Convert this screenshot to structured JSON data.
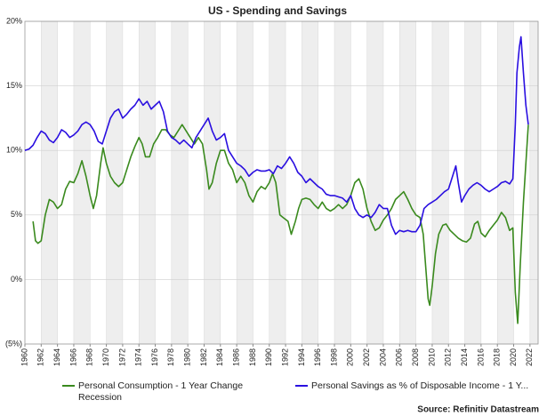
{
  "chart_data": {
    "type": "line",
    "title": "US - Spending and Savings",
    "xlim": [
      1960,
      2023
    ],
    "ylim": [
      -5,
      20
    ],
    "xticks": [
      1960,
      1962,
      1964,
      1966,
      1968,
      1970,
      1972,
      1974,
      1976,
      1978,
      1980,
      1982,
      1984,
      1986,
      1988,
      1990,
      1992,
      1994,
      1996,
      1998,
      2000,
      2002,
      2004,
      2006,
      2008,
      2010,
      2012,
      2014,
      2016,
      2018,
      2020,
      2022
    ],
    "yticks": [
      {
        "value": -5,
        "label": "(5%)"
      },
      {
        "value": 0,
        "label": "0%"
      },
      {
        "value": 5,
        "label": "5%"
      },
      {
        "value": 10,
        "label": "10%"
      },
      {
        "value": 15,
        "label": "15%"
      },
      {
        "value": 20,
        "label": "20%"
      }
    ],
    "grid": true,
    "recession_label": "Recession",
    "source": "Source: Refinitiv Datastream",
    "series": [
      {
        "name": "Personal Consumption - 1 Year Change",
        "color": "#3a8a1e",
        "x": [
          1961.0,
          1961.3,
          1961.6,
          1962.0,
          1962.5,
          1963.0,
          1963.5,
          1964.0,
          1964.5,
          1965.0,
          1965.5,
          1966.0,
          1966.5,
          1967.0,
          1967.5,
          1968.0,
          1968.4,
          1968.8,
          1969.3,
          1969.6,
          1970.0,
          1970.5,
          1971.0,
          1971.5,
          1972.0,
          1972.5,
          1973.0,
          1973.5,
          1974.0,
          1974.4,
          1974.8,
          1975.3,
          1975.8,
          1976.3,
          1976.8,
          1977.3,
          1977.8,
          1978.3,
          1978.8,
          1979.3,
          1979.8,
          1980.3,
          1980.8,
          1981.3,
          1981.8,
          1982.3,
          1982.6,
          1983.0,
          1983.5,
          1984.0,
          1984.5,
          1985.0,
          1985.5,
          1986.0,
          1986.5,
          1987.0,
          1987.5,
          1988.0,
          1988.5,
          1989.0,
          1989.5,
          1990.0,
          1990.4,
          1990.8,
          1991.3,
          1991.7,
          1992.3,
          1992.7,
          1993.2,
          1993.6,
          1994.0,
          1994.5,
          1995.0,
          1995.5,
          1996.0,
          1996.5,
          1997.0,
          1997.5,
          1998.0,
          1998.5,
          1999.0,
          1999.5,
          2000.0,
          2000.5,
          2001.0,
          2001.5,
          2002.0,
          2002.5,
          2003.0,
          2003.5,
          2004.0,
          2004.5,
          2005.0,
          2005.5,
          2006.0,
          2006.5,
          2007.0,
          2007.5,
          2008.0,
          2008.5,
          2008.9,
          2009.2,
          2009.5,
          2009.7,
          2010.0,
          2010.4,
          2010.8,
          2011.3,
          2011.7,
          2012.2,
          2012.7,
          2013.2,
          2013.7,
          2014.2,
          2014.7,
          2015.2,
          2015.6,
          2016.0,
          2016.5,
          2017.0,
          2017.5,
          2018.0,
          2018.5,
          2019.0,
          2019.5,
          2019.9,
          2020.2,
          2020.5,
          2020.8,
          2021.2,
          2021.5,
          2021.8
        ],
        "values": [
          4.5,
          3.0,
          2.8,
          3.0,
          5.0,
          6.2,
          6.0,
          5.5,
          5.8,
          7.0,
          7.6,
          7.5,
          8.2,
          9.2,
          8.0,
          6.5,
          5.5,
          6.5,
          9.0,
          10.2,
          9.0,
          8.0,
          7.5,
          7.2,
          7.5,
          8.5,
          9.5,
          10.3,
          11.0,
          10.5,
          9.5,
          9.5,
          10.5,
          11.0,
          11.6,
          11.6,
          11.2,
          11.0,
          11.5,
          12.0,
          11.5,
          11.0,
          10.5,
          11.0,
          10.5,
          8.5,
          7.0,
          7.5,
          9.0,
          10.0,
          10.0,
          9.0,
          8.5,
          7.5,
          8.0,
          7.5,
          6.5,
          6.0,
          6.8,
          7.2,
          7.0,
          7.5,
          8.2,
          7.5,
          5.0,
          4.8,
          4.5,
          3.5,
          4.5,
          5.5,
          6.2,
          6.3,
          6.2,
          5.8,
          5.5,
          6.0,
          5.5,
          5.3,
          5.5,
          5.8,
          5.5,
          5.8,
          6.5,
          7.5,
          7.8,
          7.0,
          5.5,
          4.5,
          3.8,
          4.0,
          4.6,
          5.0,
          5.5,
          6.2,
          6.5,
          6.8,
          6.2,
          5.5,
          5.0,
          4.8,
          3.5,
          1.0,
          -1.5,
          -2.0,
          -0.5,
          2.0,
          3.5,
          4.2,
          4.3,
          3.8,
          3.5,
          3.2,
          3.0,
          2.9,
          3.2,
          4.3,
          4.5,
          3.6,
          3.3,
          3.8,
          4.2,
          4.6,
          5.2,
          4.8,
          3.8,
          4.0,
          -1.0,
          -3.4,
          1.0,
          6.0,
          9.0,
          12.0
        ]
      },
      {
        "name": "Personal Savings as % of Disposable Income - 1 Y...",
        "color": "#2a0fe0",
        "x": [
          1960.0,
          1960.5,
          1961.0,
          1961.5,
          1962.0,
          1962.5,
          1963.0,
          1963.5,
          1964.0,
          1964.5,
          1965.0,
          1965.5,
          1966.0,
          1966.5,
          1967.0,
          1967.5,
          1968.0,
          1968.5,
          1969.0,
          1969.5,
          1970.0,
          1970.5,
          1971.0,
          1971.5,
          1972.0,
          1972.5,
          1973.0,
          1973.5,
          1974.0,
          1974.5,
          1975.0,
          1975.5,
          1976.0,
          1976.5,
          1977.0,
          1977.5,
          1978.0,
          1978.5,
          1979.0,
          1979.5,
          1980.0,
          1980.5,
          1981.0,
          1981.5,
          1982.0,
          1982.5,
          1983.0,
          1983.5,
          1984.0,
          1984.5,
          1985.0,
          1985.5,
          1986.0,
          1986.5,
          1987.0,
          1987.5,
          1988.0,
          1988.5,
          1989.0,
          1989.5,
          1990.0,
          1990.5,
          1991.0,
          1991.5,
          1992.0,
          1992.5,
          1993.0,
          1993.5,
          1994.0,
          1994.5,
          1995.0,
          1995.5,
          1996.0,
          1996.5,
          1997.0,
          1997.5,
          1998.0,
          1998.5,
          1999.0,
          1999.5,
          2000.0,
          2000.5,
          2001.0,
          2001.5,
          2002.0,
          2002.5,
          2003.0,
          2003.5,
          2004.0,
          2004.5,
          2005.0,
          2005.5,
          2006.0,
          2006.5,
          2007.0,
          2007.5,
          2008.0,
          2008.5,
          2009.0,
          2009.5,
          2010.0,
          2010.5,
          2011.0,
          2011.5,
          2012.0,
          2012.5,
          2012.9,
          2013.2,
          2013.6,
          2014.0,
          2014.5,
          2015.0,
          2015.5,
          2016.0,
          2016.5,
          2017.0,
          2017.5,
          2018.0,
          2018.5,
          2019.0,
          2019.5,
          2019.9,
          2020.2,
          2020.4,
          2020.7,
          2020.9,
          2021.2,
          2021.5,
          2021.8
        ],
        "values": [
          10.0,
          10.1,
          10.4,
          11.0,
          11.5,
          11.3,
          10.8,
          10.6,
          11.0,
          11.6,
          11.4,
          11.0,
          11.2,
          11.5,
          12.0,
          12.2,
          12.0,
          11.5,
          10.7,
          10.5,
          11.5,
          12.5,
          13.0,
          13.2,
          12.5,
          12.8,
          13.2,
          13.5,
          14.0,
          13.5,
          13.8,
          13.2,
          13.5,
          13.8,
          13.0,
          11.5,
          11.0,
          10.8,
          10.5,
          10.8,
          10.5,
          10.2,
          11.0,
          11.5,
          12.0,
          12.5,
          11.5,
          10.8,
          11.0,
          11.3,
          10.0,
          9.5,
          9.0,
          8.8,
          8.5,
          8.0,
          8.3,
          8.5,
          8.4,
          8.4,
          8.5,
          8.2,
          8.8,
          8.6,
          9.0,
          9.5,
          9.0,
          8.3,
          8.0,
          7.5,
          7.8,
          7.5,
          7.2,
          7.0,
          6.6,
          6.5,
          6.5,
          6.4,
          6.3,
          6.0,
          6.5,
          5.5,
          5.0,
          4.8,
          5.0,
          4.8,
          5.2,
          5.8,
          5.5,
          5.5,
          4.2,
          3.5,
          3.8,
          3.7,
          3.8,
          3.7,
          3.7,
          4.2,
          5.5,
          5.8,
          6.0,
          6.2,
          6.5,
          6.8,
          7.0,
          8.0,
          8.8,
          7.5,
          6.0,
          6.5,
          7.0,
          7.3,
          7.5,
          7.3,
          7.0,
          6.8,
          7.0,
          7.2,
          7.5,
          7.6,
          7.4,
          7.8,
          12.0,
          16.0,
          18.0,
          18.8,
          16.0,
          13.5,
          12.0
        ]
      }
    ]
  }
}
